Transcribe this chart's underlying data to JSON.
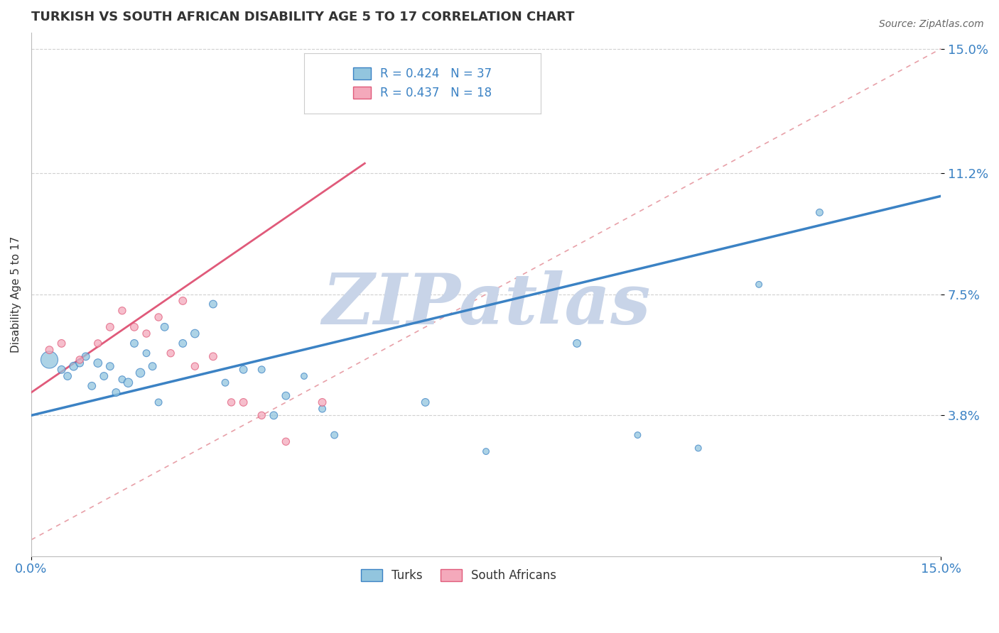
{
  "title": "TURKISH VS SOUTH AFRICAN DISABILITY AGE 5 TO 17 CORRELATION CHART",
  "source": "Source: ZipAtlas.com",
  "ylabel": "Disability Age 5 to 17",
  "xlim": [
    0.0,
    0.15
  ],
  "ylim": [
    -0.005,
    0.155
  ],
  "ytick_labels": [
    "3.8%",
    "7.5%",
    "11.2%",
    "15.0%"
  ],
  "ytick_values": [
    0.038,
    0.075,
    0.112,
    0.15
  ],
  "xtick_labels": [
    "0.0%",
    "15.0%"
  ],
  "xtick_values": [
    0.0,
    0.15
  ],
  "turks_R": 0.424,
  "turks_N": 37,
  "sa_R": 0.437,
  "sa_N": 18,
  "turks_color": "#92c5de",
  "sa_color": "#f4a9bb",
  "turks_line_color": "#3b82c4",
  "sa_line_color": "#e05a7a",
  "ref_line_color": "#e8a0a8",
  "background_color": "#ffffff",
  "grid_color": "#d0d0d0",
  "title_color": "#333333",
  "axis_color": "#3b82c4",
  "turks_scatter_x": [
    0.003,
    0.005,
    0.006,
    0.007,
    0.008,
    0.009,
    0.01,
    0.011,
    0.012,
    0.013,
    0.014,
    0.015,
    0.016,
    0.017,
    0.018,
    0.019,
    0.02,
    0.021,
    0.022,
    0.025,
    0.027,
    0.03,
    0.032,
    0.035,
    0.038,
    0.04,
    0.042,
    0.045,
    0.048,
    0.05,
    0.065,
    0.075,
    0.09,
    0.1,
    0.11,
    0.12,
    0.13
  ],
  "turks_scatter_y": [
    0.055,
    0.052,
    0.05,
    0.053,
    0.054,
    0.056,
    0.047,
    0.054,
    0.05,
    0.053,
    0.045,
    0.049,
    0.048,
    0.06,
    0.051,
    0.057,
    0.053,
    0.042,
    0.065,
    0.06,
    0.063,
    0.072,
    0.048,
    0.052,
    0.052,
    0.038,
    0.044,
    0.05,
    0.04,
    0.032,
    0.042,
    0.027,
    0.06,
    0.032,
    0.028,
    0.078,
    0.1
  ],
  "turks_scatter_size": [
    300,
    60,
    60,
    70,
    60,
    60,
    60,
    70,
    60,
    60,
    60,
    50,
    80,
    60,
    80,
    50,
    60,
    50,
    60,
    60,
    70,
    60,
    50,
    60,
    50,
    60,
    60,
    40,
    50,
    50,
    60,
    40,
    60,
    40,
    40,
    40,
    50
  ],
  "sa_scatter_x": [
    0.003,
    0.005,
    0.008,
    0.011,
    0.013,
    0.015,
    0.017,
    0.019,
    0.021,
    0.023,
    0.025,
    0.027,
    0.03,
    0.033,
    0.035,
    0.038,
    0.042,
    0.048
  ],
  "sa_scatter_y": [
    0.058,
    0.06,
    0.055,
    0.06,
    0.065,
    0.07,
    0.065,
    0.063,
    0.068,
    0.057,
    0.073,
    0.053,
    0.056,
    0.042,
    0.042,
    0.038,
    0.03,
    0.042
  ],
  "sa_scatter_size": [
    60,
    60,
    55,
    55,
    60,
    55,
    60,
    55,
    55,
    55,
    60,
    55,
    60,
    55,
    60,
    55,
    55,
    60
  ],
  "turks_trend_x": [
    0.0,
    0.15
  ],
  "turks_trend_y": [
    0.038,
    0.105
  ],
  "sa_trend_x": [
    0.0,
    0.055
  ],
  "sa_trend_y": [
    0.045,
    0.115
  ],
  "ref_line_x": [
    0.0,
    0.15
  ],
  "ref_line_y": [
    0.0,
    0.15
  ],
  "watermark": "ZIPatlas",
  "watermark_color": "#c8d4e8"
}
